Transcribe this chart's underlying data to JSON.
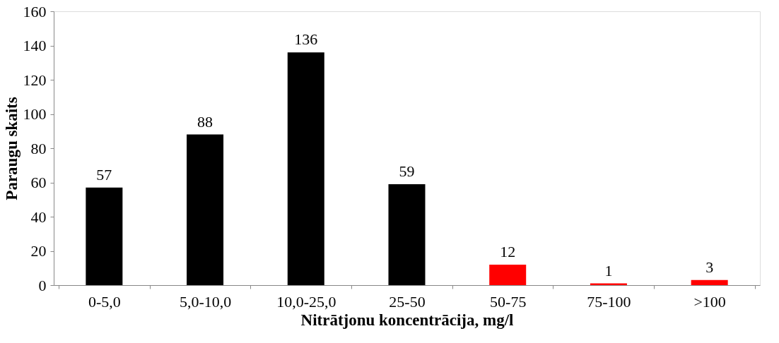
{
  "chart_data": {
    "type": "bar",
    "xlabel": "Nitrātjonu koncentrācija, mg/l",
    "ylabel": "Paraugu skaits",
    "categories": [
      "0-5,0",
      "5,0-10,0",
      "10,0-25,0",
      "25-50",
      "50-75",
      "75-100",
      ">100"
    ],
    "values": [
      57,
      88,
      136,
      59,
      12,
      1,
      3
    ],
    "colors": [
      "#000000",
      "#000000",
      "#000000",
      "#000000",
      "#ff0000",
      "#ff0000",
      "#ff0000"
    ],
    "ylim": [
      0,
      160
    ],
    "yticks": [
      0,
      20,
      40,
      60,
      80,
      100,
      120,
      140,
      160
    ],
    "data_labels": true,
    "grid": false
  }
}
